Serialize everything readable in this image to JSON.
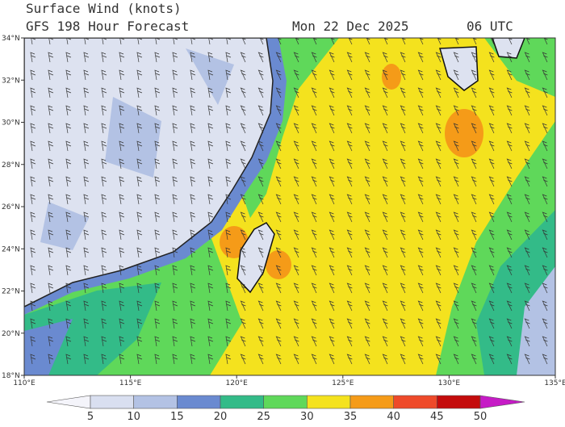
{
  "header": {
    "title": "Surface Wind (knots)",
    "subtitle": "GFS 198 Hour Forecast",
    "date": "Mon 22 Dec 2025",
    "time": "06 UTC"
  },
  "map": {
    "lat_labels": [
      "18°N",
      "20°N",
      "22°N",
      "24°N",
      "26°N",
      "28°N",
      "30°N",
      "32°N",
      "34°N"
    ],
    "lon_labels": [
      "110°E",
      "115°E",
      "120°E",
      "125°E",
      "130°E",
      "135°E"
    ]
  },
  "colorbar": {
    "ticks": [
      5,
      10,
      15,
      20,
      25,
      30,
      35,
      40,
      45,
      50
    ],
    "colors": [
      "#f4f4fa",
      "#d9dff0",
      "#b3c2e4",
      "#6a8ad0",
      "#33bb88",
      "#5fd85a",
      "#f4e21e",
      "#f59b18",
      "#ee4a2a",
      "#c40c0c",
      "#c61bc6"
    ]
  }
}
